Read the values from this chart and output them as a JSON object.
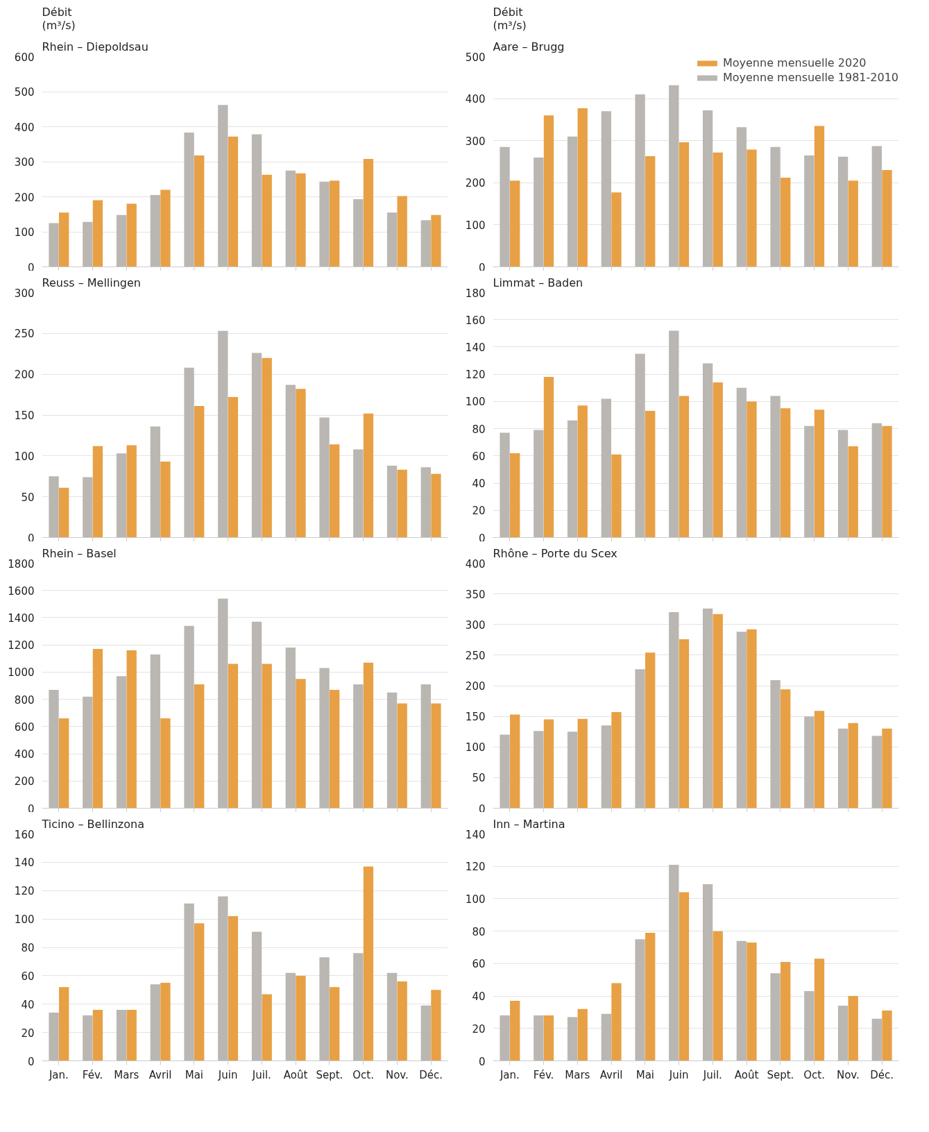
{
  "chart_data": [
    {
      "type": "bar",
      "title": "Rhein – Diepoldsau",
      "ylabel": "Débit\n(m³/s)",
      "categories": [
        null,
        null,
        null,
        null,
        null,
        null,
        null,
        null,
        null,
        null,
        null,
        null
      ],
      "ylim": [
        0,
        600
      ],
      "yticks": [
        0,
        100,
        200,
        300,
        400,
        500,
        600
      ],
      "grid": "y",
      "tick_labels": "y",
      "series": [
        {
          "color": "#bab6b2",
          "values": [
            125,
            128,
            148,
            205,
            383,
            462,
            378,
            275,
            243,
            193,
            155,
            133
          ]
        },
        {
          "color": "#e8a045",
          "values": [
            155,
            190,
            180,
            220,
            318,
            372,
            263,
            267,
            246,
            308,
            202,
            148
          ]
        }
      ]
    },
    {
      "type": "bar",
      "title": "Aare – Brugg",
      "ylabel": "Débit\n(m³/s)",
      "legend": "top right",
      "categories": [
        null,
        null,
        null,
        null,
        null,
        null,
        null,
        null,
        null,
        null,
        null,
        null
      ],
      "ylim": [
        0,
        500
      ],
      "yticks": [
        0,
        100,
        200,
        300,
        400,
        500
      ],
      "grid": "y",
      "tick_labels": "y",
      "series": [
        {
          "name": "Moyenne mensuelle 1981-2010",
          "color": "#bab6b2",
          "values": [
            285,
            260,
            310,
            370,
            410,
            432,
            372,
            332,
            285,
            265,
            262,
            287
          ]
        },
        {
          "name": "Moyenne mensuelle 2020",
          "color": "#e8a045",
          "values": [
            205,
            360,
            377,
            177,
            263,
            296,
            272,
            279,
            212,
            335,
            205,
            230
          ]
        }
      ]
    },
    {
      "type": "bar",
      "title": "Reuss – Mellingen",
      "categories": [
        null,
        null,
        null,
        null,
        null,
        null,
        null,
        null,
        null,
        null,
        null,
        null
      ],
      "ylim": [
        0,
        300
      ],
      "yticks": [
        0,
        50,
        100,
        150,
        200,
        250,
        300
      ],
      "grid": "y",
      "tick_labels": "y",
      "series": [
        {
          "color": "#bab6b2",
          "values": [
            75,
            74,
            103,
            136,
            208,
            253,
            226,
            187,
            147,
            108,
            88,
            86
          ]
        },
        {
          "color": "#e8a045",
          "values": [
            61,
            112,
            113,
            93,
            161,
            172,
            220,
            182,
            114,
            152,
            83,
            78
          ]
        }
      ]
    },
    {
      "type": "bar",
      "title": "Limmat – Baden",
      "categories": [
        null,
        null,
        null,
        null,
        null,
        null,
        null,
        null,
        null,
        null,
        null,
        null
      ],
      "ylim": [
        0,
        180
      ],
      "yticks": [
        0,
        20,
        40,
        60,
        80,
        100,
        120,
        140,
        160,
        180
      ],
      "grid": "y",
      "tick_labels": "y",
      "series": [
        {
          "color": "#bab6b2",
          "values": [
            77,
            79,
            86,
            102,
            135,
            152,
            128,
            110,
            104,
            82,
            79,
            84
          ]
        },
        {
          "color": "#e8a045",
          "values": [
            62,
            118,
            97,
            61,
            93,
            104,
            114,
            100,
            95,
            94,
            67,
            82
          ]
        }
      ]
    },
    {
      "type": "bar",
      "title": "Rhein – Basel",
      "categories": [
        null,
        null,
        null,
        null,
        null,
        null,
        null,
        null,
        null,
        null,
        null,
        null
      ],
      "ylim": [
        0,
        1800
      ],
      "yticks": [
        0,
        200,
        400,
        600,
        800,
        1000,
        1200,
        1400,
        1600,
        1800
      ],
      "grid": "y",
      "tick_labels": "y",
      "series": [
        {
          "color": "#bab6b2",
          "values": [
            870,
            820,
            970,
            1130,
            1340,
            1540,
            1370,
            1180,
            1030,
            910,
            850,
            910
          ]
        },
        {
          "color": "#e8a045",
          "values": [
            660,
            1170,
            1160,
            660,
            910,
            1060,
            1060,
            950,
            870,
            1070,
            770,
            770
          ]
        }
      ]
    },
    {
      "type": "bar",
      "title": "Rhône – Porte du Scex",
      "categories": [
        null,
        null,
        null,
        null,
        null,
        null,
        null,
        null,
        null,
        null,
        null,
        null
      ],
      "ylim": [
        0,
        400
      ],
      "yticks": [
        0,
        50,
        100,
        150,
        200,
        250,
        300,
        350,
        400
      ],
      "grid": "y",
      "tick_labels": "y",
      "series": [
        {
          "color": "#bab6b2",
          "values": [
            120,
            126,
            125,
            135,
            227,
            320,
            326,
            288,
            209,
            150,
            130,
            118
          ]
        },
        {
          "color": "#e8a045",
          "values": [
            153,
            145,
            146,
            157,
            254,
            276,
            317,
            292,
            194,
            159,
            139,
            130
          ]
        }
      ]
    },
    {
      "type": "bar",
      "title": "Ticino – Bellinzona",
      "categories": [
        "Jan.",
        "Fév.",
        "Mars",
        "Avril",
        "Mai",
        "Juin",
        "Juil.",
        "Août",
        "Sept.",
        "Oct.",
        "Nov.",
        "Déc."
      ],
      "ylim": [
        0,
        160
      ],
      "yticks": [
        0,
        20,
        40,
        60,
        80,
        100,
        120,
        140,
        160
      ],
      "grid": "y",
      "series": [
        {
          "color": "#bab6b2",
          "values": [
            34,
            32,
            36,
            54,
            111,
            116,
            91,
            62,
            73,
            76,
            62,
            39
          ]
        },
        {
          "color": "#e8a045",
          "values": [
            52,
            36,
            36,
            55,
            97,
            102,
            47,
            60,
            52,
            137,
            56,
            50
          ]
        }
      ]
    },
    {
      "type": "bar",
      "title": "Inn – Martina",
      "categories": [
        "Jan.",
        "Fév.",
        "Mars",
        "Avril",
        "Mai",
        "Juin",
        "Juil.",
        "Août",
        "Sept.",
        "Oct.",
        "Nov.",
        "Déc."
      ],
      "ylim": [
        0,
        140
      ],
      "yticks": [
        0,
        20,
        40,
        60,
        80,
        100,
        120,
        140
      ],
      "grid": "y",
      "series": [
        {
          "color": "#bab6b2",
          "values": [
            28,
            28,
            27,
            29,
            75,
            121,
            109,
            74,
            54,
            43,
            34,
            26
          ]
        },
        {
          "color": "#e8a045",
          "values": [
            37,
            28,
            32,
            48,
            79,
            104,
            80,
            73,
            61,
            63,
            40,
            31
          ]
        }
      ]
    }
  ]
}
